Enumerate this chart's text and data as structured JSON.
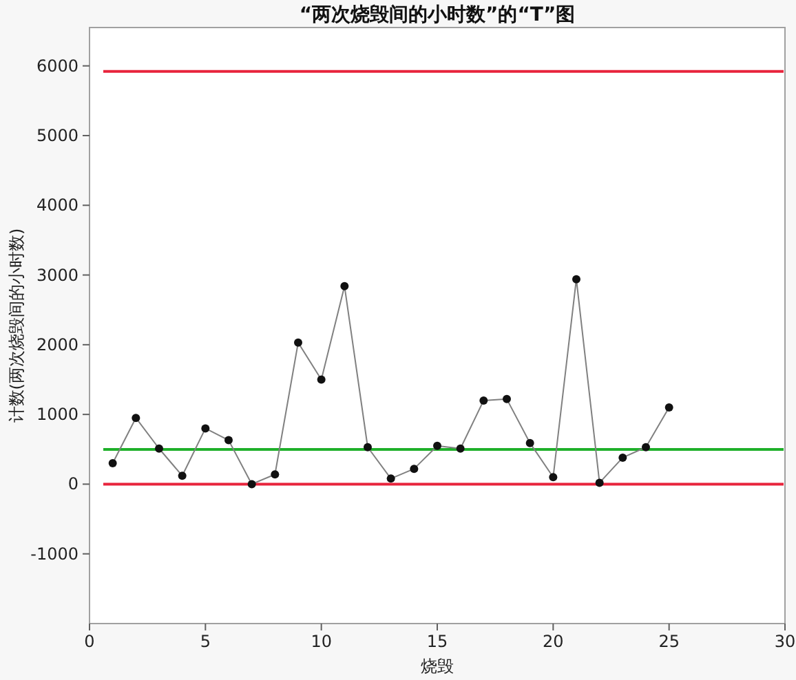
{
  "chart_data": {
    "type": "line",
    "title": "“两次烧毁间的小时数”的“T”图",
    "xlabel": "烧毁",
    "ylabel": "计数(两次烧毁间的小时数)",
    "x": [
      1,
      2,
      3,
      4,
      5,
      6,
      7,
      8,
      9,
      10,
      11,
      12,
      13,
      14,
      15,
      16,
      17,
      18,
      19,
      20,
      21,
      22,
      23,
      24,
      25
    ],
    "series": [
      {
        "color": "#808080",
        "values": [
          300,
          950,
          510,
          120,
          800,
          630,
          0,
          140,
          2030,
          1500,
          2840,
          530,
          80,
          220,
          550,
          510,
          1200,
          1220,
          590,
          100,
          2940,
          20,
          380,
          530,
          1100
        ]
      }
    ],
    "marker": "circle",
    "xlim": [
      0,
      30
    ],
    "xticks": [
      0,
      5,
      10,
      15,
      20,
      25,
      30
    ],
    "ylim": [
      -2000,
      6550
    ],
    "yticks": [
      -1000,
      0,
      1000,
      2000,
      3000,
      4000,
      5000,
      6000
    ],
    "ref_lines": [
      {
        "axis": "y",
        "value": 5920,
        "color": "#e8243c"
      },
      {
        "axis": "y",
        "value": 0,
        "color": "#e8243c"
      },
      {
        "axis": "y",
        "value": 497,
        "color": "#1fb02a"
      }
    ],
    "grid": false
  }
}
